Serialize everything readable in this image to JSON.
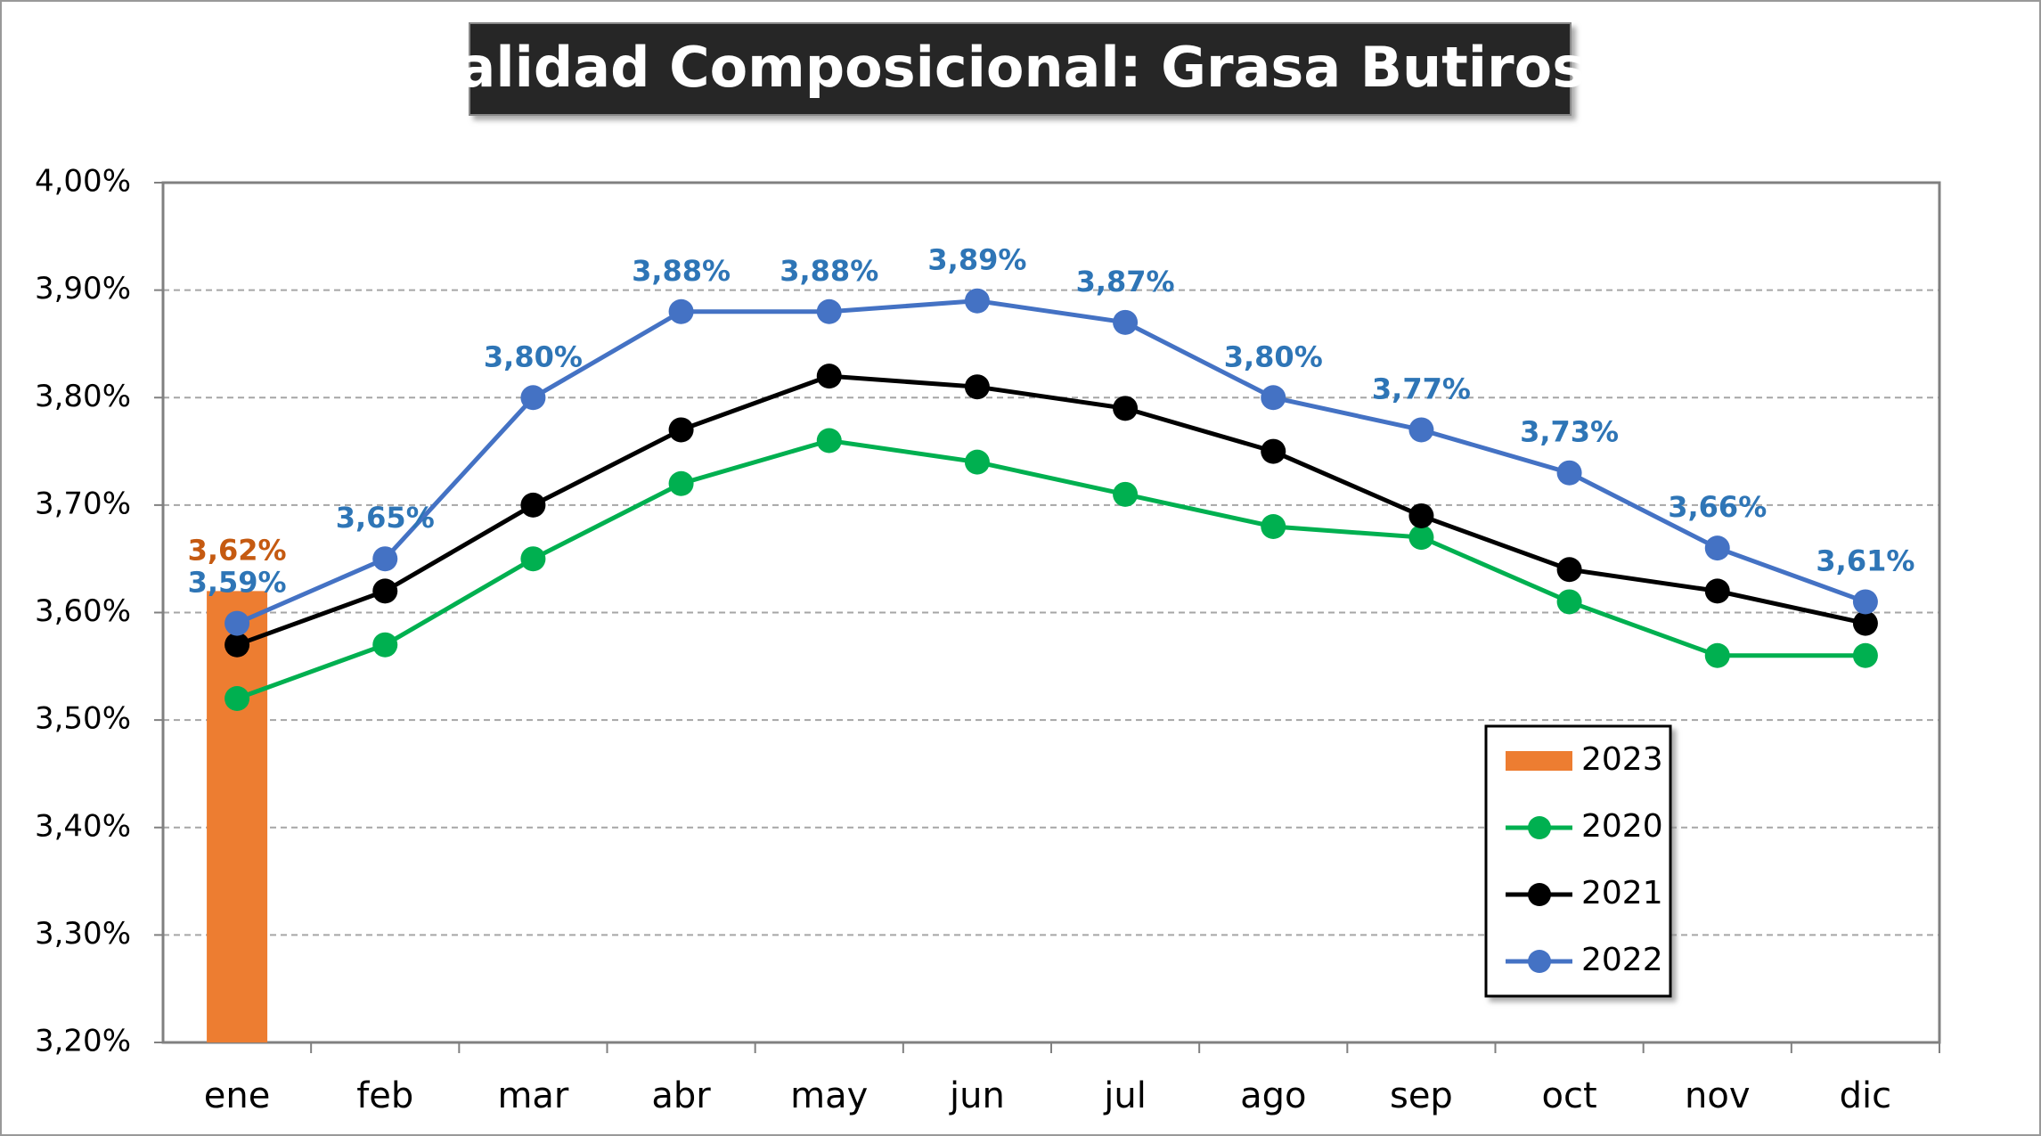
{
  "chart_data": {
    "type": "line",
    "title": "Calidad Composicional: Grasa Butirosa",
    "categories": [
      "ene",
      "feb",
      "mar",
      "abr",
      "may",
      "jun",
      "jul",
      "ago",
      "sep",
      "oct",
      "nov",
      "dic"
    ],
    "ylim": [
      3.2,
      4.0
    ],
    "yticks": [
      {
        "value": 3.2,
        "label": "3,20%"
      },
      {
        "value": 3.3,
        "label": "3,30%"
      },
      {
        "value": 3.4,
        "label": "3,40%"
      },
      {
        "value": 3.5,
        "label": "3,50%"
      },
      {
        "value": 3.6,
        "label": "3,60%"
      },
      {
        "value": 3.7,
        "label": "3,70%"
      },
      {
        "value": 3.8,
        "label": "3,80%"
      },
      {
        "value": 3.9,
        "label": "3,90%"
      },
      {
        "value": 4.0,
        "label": "4,00%"
      }
    ],
    "grid": true,
    "legend": "lower right",
    "series": [
      {
        "name": "2023",
        "type": "bar",
        "color": "#ed7d31",
        "values": [
          3.62,
          null,
          null,
          null,
          null,
          null,
          null,
          null,
          null,
          null,
          null,
          null
        ],
        "value_labels": [
          "3,62%",
          null,
          null,
          null,
          null,
          null,
          null,
          null,
          null,
          null,
          null,
          null
        ]
      },
      {
        "name": "2020",
        "color": "#00b050",
        "values": [
          3.52,
          3.57,
          3.65,
          3.72,
          3.76,
          3.74,
          3.71,
          3.68,
          3.67,
          3.61,
          3.56,
          3.56
        ]
      },
      {
        "name": "2021",
        "color": "#000000",
        "values": [
          3.57,
          3.62,
          3.7,
          3.77,
          3.82,
          3.81,
          3.79,
          3.75,
          3.69,
          3.64,
          3.62,
          3.59
        ]
      },
      {
        "name": "2022",
        "color": "#4472c4",
        "values": [
          3.59,
          3.65,
          3.8,
          3.88,
          3.88,
          3.89,
          3.87,
          3.8,
          3.77,
          3.73,
          3.66,
          3.61
        ],
        "value_labels": [
          "3,59%",
          "3,65%",
          "3,80%",
          "3,88%",
          "3,88%",
          "3,89%",
          "3,87%",
          "3,80%",
          "3,77%",
          "3,73%",
          "3,66%",
          "3,61%"
        ]
      }
    ]
  }
}
